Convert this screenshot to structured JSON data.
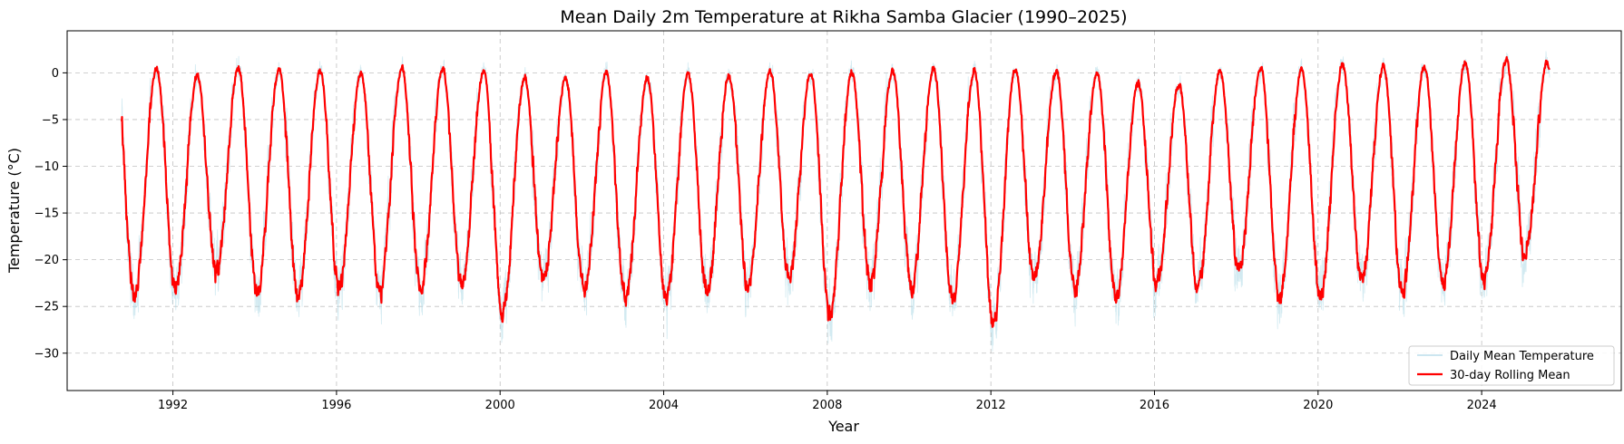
{
  "chart_data": {
    "type": "line",
    "title": "Mean Daily 2m Temperature at Rikha Samba Glacier (1990–2025)",
    "xlabel": "Year",
    "ylabel": "Temperature (°C)",
    "xlim": [
      "1989-06-01",
      "2027-06-01"
    ],
    "ylim": [
      -34,
      4.5
    ],
    "x_ticks": [
      "1992",
      "1996",
      "2000",
      "2004",
      "2008",
      "2012",
      "2016",
      "2020",
      "2024"
    ],
    "y_ticks": [
      0,
      -5,
      -10,
      -15,
      -20,
      -25,
      -30
    ],
    "y_tick_labels": [
      "0",
      "−5",
      "−10",
      "−15",
      "−20",
      "−25",
      "−30"
    ],
    "grid": true,
    "legend_position": "lower-right",
    "date_range": [
      "1990-10-01",
      "2025-08-31"
    ],
    "series": [
      {
        "name": "Daily Mean Temperature",
        "color": "#add8e6",
        "style": "thin, semi-transparent",
        "annual_summer_max": [
          1.5,
          1.2,
          1.8,
          2.0,
          1.6,
          1.5,
          1.8,
          2.1,
          1.9,
          0.8,
          0.9,
          1.4,
          1.3,
          1.5,
          1.6,
          2.3,
          1.9,
          1.7,
          1.5,
          1.9,
          1.6,
          1.5,
          1.3,
          1.2,
          1.0,
          1.1,
          1.3,
          1.7,
          1.6,
          2.0,
          2.3,
          2.6,
          2.6,
          3.0,
          2.8
        ],
        "annual_winter_min": [
          -29.5,
          -30.5,
          -28.0,
          -28.5,
          -32.0,
          -28.5,
          -27.0,
          -27.5,
          -28.0,
          -31.5,
          -28.0,
          -28.0,
          -30.5,
          -28.5,
          -29.0,
          -28.0,
          -28.0,
          -31.5,
          -28.5,
          -28.0,
          -28.0,
          -30.5,
          -30.0,
          -28.0,
          -27.5,
          -26.5,
          -27.0,
          -27.5,
          -29.5,
          -28.5,
          -28.0,
          -28.5,
          -28.0,
          -29.0,
          -26.0
        ]
      },
      {
        "name": "30-day Rolling Mean",
        "color": "#ff0000",
        "style": "solid, 2px",
        "annual_summer_max": [
          0.5,
          -0.2,
          0.5,
          0.5,
          0.2,
          0.0,
          0.5,
          0.5,
          0.2,
          -0.5,
          -0.5,
          0.0,
          -0.5,
          -0.1,
          -0.3,
          0.2,
          0.0,
          0.0,
          0.3,
          0.5,
          0.3,
          0.4,
          0.2,
          0.0,
          -1.0,
          -1.2,
          0.3,
          0.6,
          0.4,
          0.9,
          0.8,
          0.7,
          1.2,
          1.4,
          1.1
        ],
        "annual_winter_min": [
          -23.8,
          -23.0,
          -21.6,
          -23.5,
          -24.0,
          -22.8,
          -23.4,
          -23.0,
          -22.8,
          -25.8,
          -22.2,
          -23.4,
          -24.0,
          -24.2,
          -23.6,
          -22.8,
          -22.0,
          -25.8,
          -22.6,
          -22.8,
          -24.4,
          -26.7,
          -22.0,
          -23.2,
          -24.0,
          -22.6,
          -23.2,
          -21.0,
          -24.2,
          -24.2,
          -22.0,
          -23.6,
          -22.6,
          -22.2,
          -19.5
        ]
      }
    ]
  }
}
